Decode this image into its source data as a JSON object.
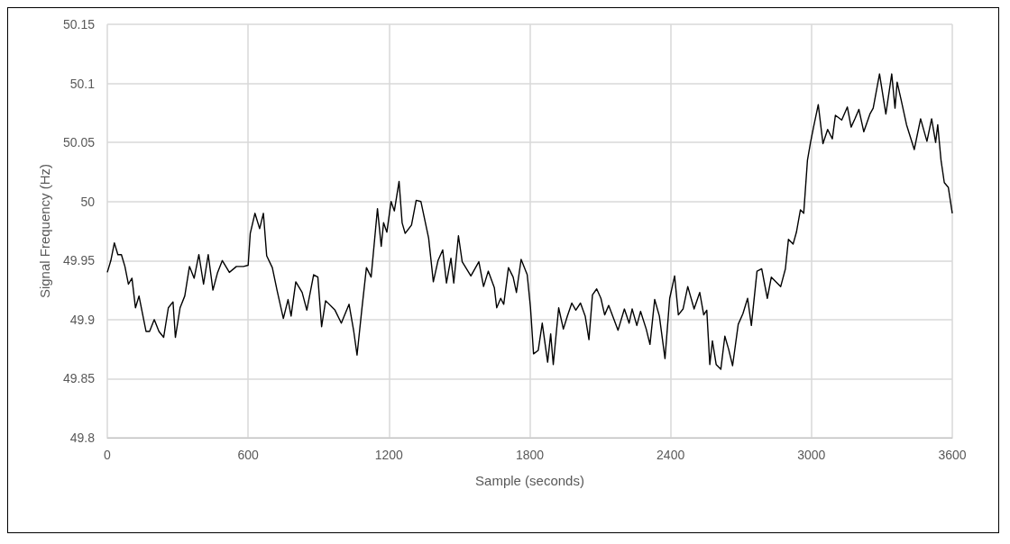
{
  "chart_data": {
    "type": "line",
    "xlabel": "Sample (seconds)",
    "ylabel": "Signal Frequency (Hz)",
    "xlim": [
      0,
      3600
    ],
    "xticks": [
      0,
      600,
      1200,
      1800,
      2400,
      3000,
      3600
    ],
    "ylim": [
      49.8,
      50.15
    ],
    "yticks": [
      49.8,
      49.85,
      49.9,
      49.95,
      50,
      50.05,
      50.1,
      50.15
    ],
    "grid": true,
    "marker": "none",
    "line_style": "solid",
    "series": [
      {
        "color": "#000000",
        "x": [
          0,
          15,
          30,
          45,
          60,
          75,
          90,
          105,
          120,
          135,
          150,
          165,
          180,
          200,
          220,
          240,
          260,
          280,
          290,
          310,
          330,
          350,
          370,
          390,
          410,
          430,
          450,
          470,
          490,
          520,
          550,
          580,
          600,
          609,
          629,
          649,
          665,
          679,
          703,
          723,
          750,
          770,
          783,
          803,
          830,
          850,
          879,
          897,
          913,
          930,
          970,
          997,
          1030,
          1050,
          1064,
          1084,
          1104,
          1124,
          1151,
          1167,
          1177,
          1191,
          1209,
          1223,
          1243,
          1256,
          1269,
          1296,
          1316,
          1336,
          1369,
          1389,
          1409,
          1429,
          1445,
          1464,
          1476,
          1496,
          1512,
          1549,
          1583,
          1603,
          1623,
          1649,
          1659,
          1676,
          1689,
          1709,
          1729,
          1743,
          1763,
          1789,
          1803,
          1816,
          1836,
          1853,
          1876,
          1889,
          1900,
          1923,
          1943,
          1960,
          1979,
          1996,
          2016,
          2036,
          2052,
          2067,
          2085,
          2103,
          2119,
          2136,
          2176,
          2203,
          2223,
          2236,
          2256,
          2272,
          2296,
          2312,
          2332,
          2352,
          2376,
          2396,
          2417,
          2433,
          2453,
          2473,
          2500,
          2524,
          2541,
          2554,
          2567,
          2578,
          2594,
          2614,
          2631,
          2647,
          2664,
          2688,
          2708,
          2728,
          2744,
          2768,
          2788,
          2812,
          2829,
          2869,
          2889,
          2902,
          2922,
          2936,
          2953,
          2967,
          2983,
          2996,
          3009,
          3029,
          3049,
          3069,
          3089,
          3102,
          3129,
          3153,
          3169,
          3185,
          3202,
          3223,
          3249,
          3263,
          3290,
          3317,
          3342,
          3356,
          3365,
          3381,
          3405,
          3438,
          3465,
          3492,
          3512,
          3529,
          3538,
          3552,
          3566,
          3583,
          3600
        ],
        "values": [
          49.94,
          49.95,
          49.965,
          49.955,
          49.955,
          49.945,
          49.93,
          49.935,
          49.91,
          49.92,
          49.905,
          49.89,
          49.89,
          49.9,
          49.89,
          49.885,
          49.91,
          49.915,
          49.885,
          49.91,
          49.92,
          49.945,
          49.935,
          49.955,
          49.93,
          49.955,
          49.925,
          49.94,
          49.95,
          49.94,
          49.945,
          49.945,
          49.946,
          49.973,
          49.99,
          49.977,
          49.99,
          49.954,
          49.944,
          49.925,
          49.901,
          49.917,
          49.903,
          49.932,
          49.923,
          49.908,
          49.938,
          49.936,
          49.894,
          49.916,
          49.908,
          49.897,
          49.913,
          49.89,
          49.87,
          49.908,
          49.944,
          49.936,
          49.994,
          49.962,
          49.982,
          49.974,
          50,
          49.992,
          50.017,
          49.982,
          49.973,
          49.98,
          50.001,
          50,
          49.969,
          49.932,
          49.95,
          49.959,
          49.931,
          49.952,
          49.931,
          49.971,
          49.949,
          49.937,
          49.949,
          49.928,
          49.941,
          49.927,
          49.91,
          49.918,
          49.913,
          49.944,
          49.936,
          49.923,
          49.951,
          49.938,
          49.91,
          49.871,
          49.874,
          49.897,
          49.864,
          49.888,
          49.862,
          49.91,
          49.892,
          49.903,
          49.914,
          49.908,
          49.914,
          49.903,
          49.883,
          49.921,
          49.926,
          49.918,
          49.904,
          49.912,
          49.891,
          49.909,
          49.897,
          49.909,
          49.895,
          49.907,
          49.892,
          49.879,
          49.917,
          49.903,
          49.867,
          49.918,
          49.937,
          49.904,
          49.909,
          49.928,
          49.909,
          49.923,
          49.904,
          49.908,
          49.862,
          49.882,
          49.862,
          49.858,
          49.886,
          49.875,
          49.861,
          49.896,
          49.905,
          49.918,
          49.895,
          49.941,
          49.943,
          49.918,
          49.936,
          49.928,
          49.943,
          49.968,
          49.964,
          49.974,
          49.993,
          49.99,
          50.035,
          50.05,
          50.063,
          50.082,
          50.049,
          50.061,
          50.053,
          50.073,
          50.069,
          50.08,
          50.063,
          50.07,
          50.078,
          50.059,
          50.074,
          50.079,
          50.108,
          50.074,
          50.108,
          50.079,
          50.101,
          50.087,
          50.065,
          50.044,
          50.07,
          50.051,
          50.07,
          50.05,
          50.065,
          50.035,
          50.016,
          50.012,
          49.99
        ]
      }
    ]
  }
}
